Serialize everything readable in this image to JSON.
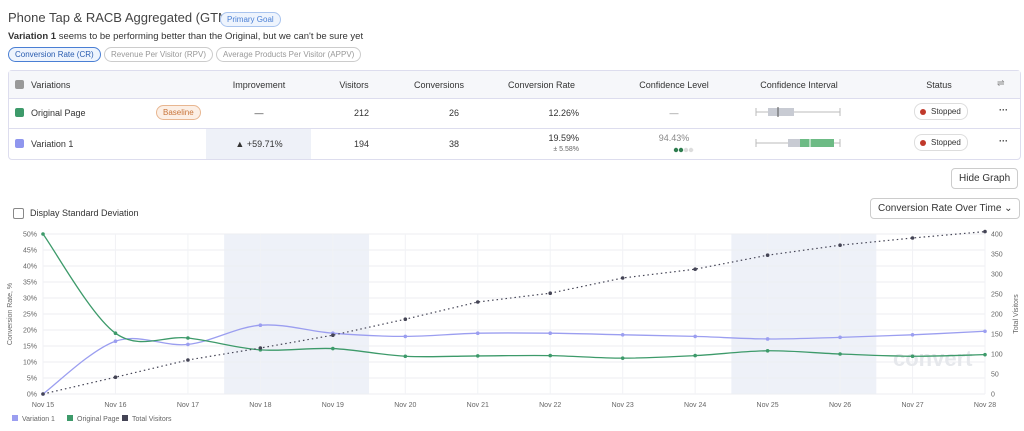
{
  "header": {
    "title": "Phone Tap & RACB Aggregated (GTM)",
    "badge": "Primary Goal",
    "summary_bold": "Variation 1",
    "summary": "seems to be performing better than the Original, but we can't be sure yet"
  },
  "tabs": [
    "Conversion Rate (CR)",
    "Revenue Per Visitor (RPV)",
    "Average Products Per Visitor (APPV)"
  ],
  "table": {
    "columns": [
      "Variations",
      "Improvement",
      "Visitors",
      "Conversions",
      "Conversion Rate",
      "Confidence Level",
      "Confidence Interval",
      "Status"
    ],
    "rows": [
      {
        "name": "Original Page",
        "tag": "Baseline",
        "improvement": "—",
        "visitors": 212,
        "conversions": 26,
        "conversion_rate": "12.26%",
        "confidence": "—",
        "status": "Stopped"
      },
      {
        "name": "Variation 1",
        "improvement": "+59.71%",
        "visitors": 194,
        "conversions": 38,
        "conversion_rate": "19.59%",
        "conversion_rate_error": "± 5.58%",
        "confidence": "94.43%",
        "status": "Stopped"
      }
    ]
  },
  "controls": {
    "hide_graph": "Hide Graph",
    "std_dev": "Display Standard Deviation",
    "view": "Conversion Rate Over Time"
  },
  "chart_data": {
    "type": "line",
    "y_label": "Conversion Rate, %",
    "y2_label": "Total Visitors",
    "watermark": "convert",
    "categories": [
      "Nov 15",
      "Nov 16",
      "Nov 17",
      "Nov 18",
      "Nov 19",
      "Nov 20",
      "Nov 21",
      "Nov 22",
      "Nov 23",
      "Nov 24",
      "Nov 25",
      "Nov 26",
      "Nov 27",
      "Nov 28"
    ],
    "series": [
      {
        "name": "Variation 1",
        "color": "#9b9ef0",
        "values": [
          0,
          16.5,
          15.5,
          21.5,
          19,
          18,
          19,
          19,
          18.5,
          18,
          17.2,
          17.7,
          18.5,
          19.6
        ]
      },
      {
        "name": "Original Page",
        "color": "#3d9a6a",
        "values": [
          50,
          19,
          17.5,
          13.8,
          14.2,
          11.8,
          11.9,
          12,
          11.2,
          12,
          13.5,
          12.5,
          11.8,
          12.3
        ]
      },
      {
        "name": "Total Visitors",
        "color": "#444455",
        "axis": "y2",
        "dotted": true,
        "values": [
          0,
          42,
          85,
          115,
          147,
          187,
          230,
          252,
          290,
          312,
          347,
          372,
          390,
          406
        ]
      }
    ],
    "ylim": [
      0,
      50
    ],
    "yticks": [
      {
        "value": 0,
        "label": "0%"
      },
      {
        "value": 5,
        "label": "5%"
      },
      {
        "value": 10,
        "label": "10%"
      },
      {
        "value": 15,
        "label": "15%"
      },
      {
        "value": 20,
        "label": "20%"
      },
      {
        "value": 25,
        "label": "25%"
      },
      {
        "value": 30,
        "label": "30%"
      },
      {
        "value": 35,
        "label": "35%"
      },
      {
        "value": 40,
        "label": "40%"
      },
      {
        "value": 45,
        "label": "45%"
      },
      {
        "value": 50,
        "label": "50%"
      }
    ],
    "y2lim": [
      0,
      400
    ],
    "y2ticks": [
      0,
      50,
      100,
      150,
      200,
      250,
      300,
      350,
      400
    ],
    "grid": true
  }
}
